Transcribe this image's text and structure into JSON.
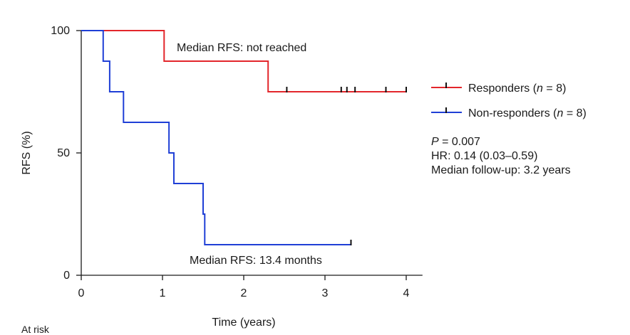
{
  "chart_data": {
    "type": "line",
    "xlabel": "Time (years)",
    "ylabel": "RFS (%)",
    "xlim": [
      0,
      4.2
    ],
    "ylim": [
      0,
      100
    ],
    "xticks": [
      "0",
      "1",
      "2",
      "3",
      "4"
    ],
    "yticks": [
      "0",
      "50",
      "100"
    ],
    "grid": false,
    "legend_placement": "right",
    "series": [
      {
        "name": "Responders",
        "legend_label": "Responders (n = 8)",
        "color": "#e3262b",
        "steps": [
          [
            0,
            100
          ],
          [
            1.02,
            87.5
          ],
          [
            2.3,
            75
          ],
          [
            4.0,
            75
          ]
        ],
        "censored": [
          2.53,
          3.2,
          3.27,
          3.37,
          3.75,
          4.0
        ]
      },
      {
        "name": "Non-responders",
        "legend_label": "Non-responders (n = 8)",
        "color": "#1f3fd6",
        "steps": [
          [
            0,
            100
          ],
          [
            0.27,
            87.5
          ],
          [
            0.35,
            75
          ],
          [
            0.52,
            62.5
          ],
          [
            1.08,
            50
          ],
          [
            1.14,
            37.5
          ],
          [
            1.5,
            25
          ],
          [
            1.52,
            12.5
          ],
          [
            3.32,
            12.5
          ]
        ],
        "censored": [
          3.32
        ]
      }
    ],
    "annotations": [
      {
        "id": "responders-median",
        "text": "Median RFS: not reached"
      },
      {
        "id": "nonresponders-median",
        "text": "Median RFS: 13.4 months"
      }
    ]
  },
  "stats": {
    "p_value": "P = 0.007",
    "hr": "HR: 0.14 (0.03–0.59)",
    "followup": "Median follow-up: 3.2 years"
  },
  "at_risk_label": "At risk"
}
